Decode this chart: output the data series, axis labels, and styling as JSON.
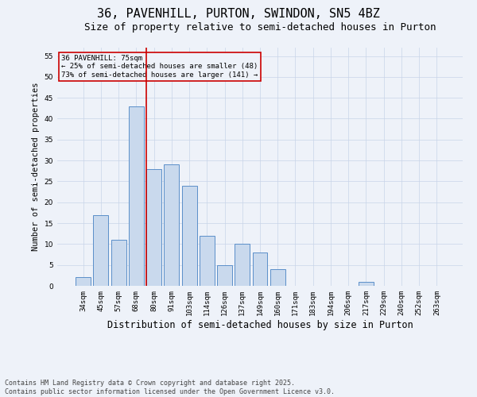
{
  "title1": "36, PAVENHILL, PURTON, SWINDON, SN5 4BZ",
  "title2": "Size of property relative to semi-detached houses in Purton",
  "xlabel": "Distribution of semi-detached houses by size in Purton",
  "ylabel": "Number of semi-detached properties",
  "categories": [
    "34sqm",
    "45sqm",
    "57sqm",
    "68sqm",
    "80sqm",
    "91sqm",
    "103sqm",
    "114sqm",
    "126sqm",
    "137sqm",
    "149sqm",
    "160sqm",
    "171sqm",
    "183sqm",
    "194sqm",
    "206sqm",
    "217sqm",
    "229sqm",
    "240sqm",
    "252sqm",
    "263sqm"
  ],
  "values": [
    2,
    17,
    11,
    43,
    28,
    29,
    24,
    12,
    5,
    10,
    8,
    4,
    0,
    0,
    0,
    0,
    1,
    0,
    0,
    0,
    0
  ],
  "bar_color": "#c9d9ed",
  "bar_edge_color": "#5b8fc9",
  "grid_color": "#c8d4e8",
  "annotation_box_text": "36 PAVENHILL: 75sqm\n← 25% of semi-detached houses are smaller (48)\n73% of semi-detached houses are larger (141) →",
  "annotation_box_color": "#cc0000",
  "ref_line_color": "#cc0000",
  "ylim": [
    0,
    57
  ],
  "yticks": [
    0,
    5,
    10,
    15,
    20,
    25,
    30,
    35,
    40,
    45,
    50,
    55
  ],
  "footer_text": "Contains HM Land Registry data © Crown copyright and database right 2025.\nContains public sector information licensed under the Open Government Licence v3.0.",
  "title1_fontsize": 11,
  "title2_fontsize": 9,
  "xlabel_fontsize": 8.5,
  "ylabel_fontsize": 7.5,
  "tick_fontsize": 6.5,
  "annotation_fontsize": 6.5,
  "footer_fontsize": 6,
  "background_color": "#eef2f9"
}
